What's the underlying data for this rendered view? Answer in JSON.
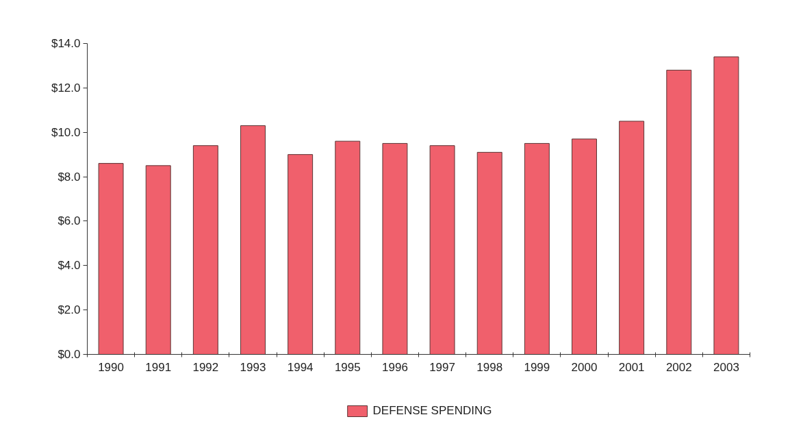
{
  "chart_data": {
    "type": "bar",
    "categories": [
      "1990",
      "1991",
      "1992",
      "1993",
      "1994",
      "1995",
      "1996",
      "1997",
      "1998",
      "1999",
      "2000",
      "2001",
      "2002",
      "2003"
    ],
    "series": [
      {
        "name": "DEFENSE SPENDING",
        "color": "#f0606c",
        "values": [
          8.6,
          8.5,
          9.4,
          10.3,
          9.0,
          9.6,
          9.5,
          9.4,
          9.1,
          9.5,
          9.7,
          10.5,
          12.8,
          13.4
        ]
      }
    ],
    "ylim": [
      0,
      14
    ],
    "yticks": [
      {
        "value": 0,
        "label": "$0.0"
      },
      {
        "value": 2,
        "label": "$2.0"
      },
      {
        "value": 4,
        "label": "$4.0"
      },
      {
        "value": 6,
        "label": "$6.0"
      },
      {
        "value": 8,
        "label": "$8.0"
      },
      {
        "value": 10,
        "label": "$10.0"
      },
      {
        "value": 12,
        "label": "$12.0"
      },
      {
        "value": 14,
        "label": "$14.0"
      }
    ],
    "legend": "bottom"
  }
}
